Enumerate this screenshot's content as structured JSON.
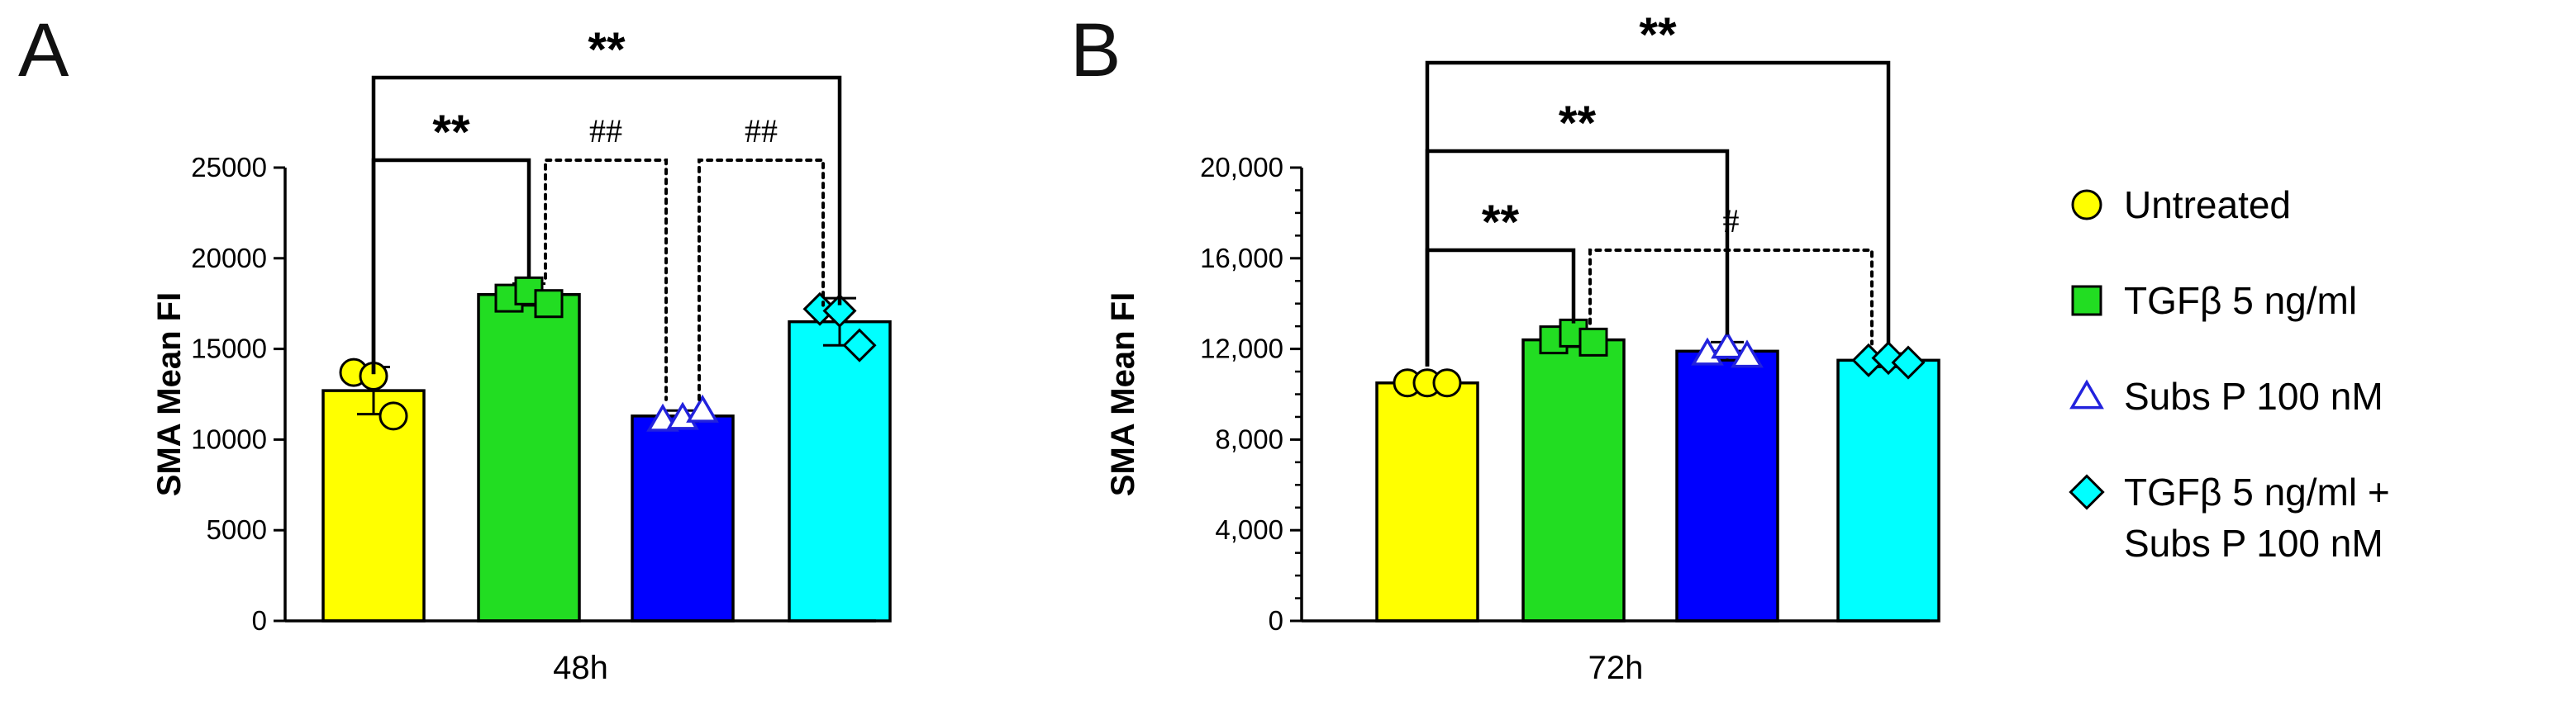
{
  "colors": {
    "untreated": "#FFFF00",
    "tgfb": "#22DD22",
    "subsp": "#0000FF",
    "combo": "#00FFFF",
    "subsp_marker": "#2222DD"
  },
  "legend": [
    {
      "key": "untreated",
      "marker": "circle",
      "lines": [
        "Untreated"
      ]
    },
    {
      "key": "tgfb",
      "marker": "square",
      "lines": [
        "TGFβ  5 ng/ml"
      ]
    },
    {
      "key": "subsp",
      "marker": "triangle",
      "lines": [
        "Subs P 100 nM"
      ]
    },
    {
      "key": "combo",
      "marker": "diamond",
      "lines": [
        "TGFβ 5 ng/ml +",
        "Subs P 100 nM"
      ]
    }
  ],
  "chart_data": [
    {
      "type": "bar",
      "panel": "A",
      "xlabel": "48h",
      "ylabel": "SMA Mean FI",
      "ylim": [
        0,
        25000
      ],
      "yticks": [
        0,
        5000,
        10000,
        15000,
        20000,
        25000
      ],
      "ytick_labels": [
        "0",
        "5000",
        "10000",
        "15000",
        "20000",
        "25000"
      ],
      "minor_ticks": false,
      "categories": [
        "Untreated",
        "TGFβ 5 ng/ml",
        "Subs P 100 nM",
        "TGFβ 5 ng/ml + Subs P 100 nM"
      ],
      "values": [
        12700,
        18000,
        11300,
        16500
      ],
      "errors": [
        1300,
        600,
        300,
        1300
      ],
      "points": [
        [
          13700,
          13500,
          11300
        ],
        [
          17800,
          18200,
          17500
        ],
        [
          11100,
          11200,
          11600
        ],
        [
          17200,
          17100,
          15200
        ]
      ],
      "significance": [
        {
          "from": 0,
          "to": 3,
          "label": "**",
          "style": "solid",
          "level": 4
        },
        {
          "from": 0,
          "to": 1,
          "label": "**",
          "style": "solid",
          "level": 1
        },
        {
          "from": 1,
          "to": 2,
          "label": "##",
          "style": "dotted",
          "level": 1
        },
        {
          "from": 2,
          "to": 3,
          "label": "##",
          "style": "dotted",
          "level": 1
        }
      ]
    },
    {
      "type": "bar",
      "panel": "B",
      "xlabel": "72h",
      "ylabel": "SMA Mean FI",
      "ylim": [
        0,
        20000
      ],
      "yticks": [
        0,
        4000,
        8000,
        12000,
        16000,
        20000
      ],
      "ytick_labels": [
        "0",
        "4,000",
        "8,000",
        "12,000",
        "16,000",
        "20,000"
      ],
      "minor_ticks": true,
      "categories": [
        "Untreated",
        "TGFβ 5 ng/ml",
        "Subs P 100 nM",
        "TGFβ 5 ng/ml + Subs P 100 nM"
      ],
      "values": [
        10500,
        12400,
        11900,
        11500
      ],
      "errors": [
        100,
        300,
        400,
        300
      ],
      "points": [
        [
          10500,
          10500,
          10500
        ],
        [
          12400,
          12700,
          12300
        ],
        [
          11800,
          12100,
          11700
        ],
        [
          11500,
          11600,
          11400
        ]
      ],
      "significance": [
        {
          "from": 0,
          "to": 3,
          "label": "**",
          "style": "solid",
          "level": 4
        },
        {
          "from": 0,
          "to": 2,
          "label": "**",
          "style": "solid",
          "level": 2
        },
        {
          "from": 0,
          "to": 1,
          "label": "**",
          "style": "solid",
          "level": 1
        },
        {
          "from": 1,
          "to": 3,
          "label": "#",
          "style": "dotted",
          "level": 1
        }
      ]
    }
  ]
}
